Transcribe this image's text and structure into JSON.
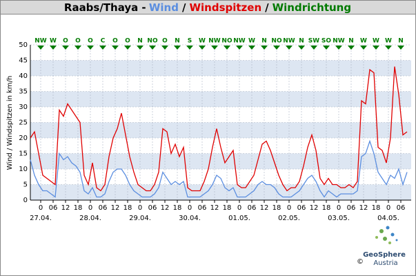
{
  "chart_data": {
    "type": "line",
    "location": "Raabs/Thaya",
    "title_separators": [
      "-",
      "/",
      "/"
    ],
    "direction_name": "Windrichtung",
    "direction_color": "#007a00",
    "y_label": "Wind / Windspitzen in km/h",
    "x": [
      -5,
      -3,
      -1,
      1,
      3,
      5,
      7,
      9,
      11,
      13,
      15,
      17,
      19,
      21,
      23,
      25,
      27,
      29,
      31,
      33,
      35,
      37,
      39,
      41,
      43,
      45,
      47,
      49,
      51,
      53,
      55,
      57,
      59,
      61,
      63,
      65,
      67,
      69,
      71,
      73,
      75,
      77,
      79,
      81,
      83,
      85,
      87,
      89,
      91,
      93,
      95,
      97,
      99,
      101,
      103,
      105,
      107,
      109,
      111,
      113,
      115,
      117,
      119,
      121,
      123,
      125,
      127,
      129,
      131,
      133,
      135,
      137,
      139,
      141,
      143,
      145,
      147,
      149,
      151,
      153,
      155,
      157,
      159,
      161,
      163,
      165,
      167,
      169,
      171,
      173,
      175,
      177
    ],
    "series": [
      {
        "name": "Wind",
        "color": "#5b8ee0",
        "values": [
          13,
          8,
          5,
          3,
          3,
          2,
          1,
          15,
          13,
          14,
          12,
          11,
          9,
          3,
          2,
          4,
          1,
          1,
          2,
          6,
          9,
          10,
          10,
          8,
          5,
          3,
          2,
          1,
          1,
          1,
          2,
          4,
          9,
          7,
          5,
          6,
          5,
          6,
          1,
          1,
          1,
          1,
          2,
          3,
          5,
          8,
          7,
          4,
          3,
          4,
          1,
          1,
          1,
          2,
          3,
          5,
          6,
          5,
          5,
          4,
          2,
          1,
          1,
          1,
          2,
          3,
          5,
          7,
          8,
          6,
          3,
          1,
          3,
          2,
          1,
          2,
          2,
          2,
          2,
          3,
          14,
          15,
          19,
          15,
          9,
          7,
          5,
          8,
          7,
          10,
          5,
          9
        ]
      },
      {
        "name": "Windspitzen",
        "color": "#e00000",
        "values": [
          20,
          22,
          15,
          8,
          7,
          6,
          5,
          29,
          27,
          31,
          29,
          27,
          25,
          8,
          5,
          12,
          4,
          3,
          5,
          14,
          20,
          23,
          28,
          21,
          14,
          9,
          5,
          4,
          3,
          3,
          5,
          9,
          23,
          22,
          15,
          18,
          14,
          17,
          4,
          3,
          3,
          3,
          6,
          10,
          17,
          23,
          17,
          12,
          14,
          16,
          5,
          4,
          4,
          6,
          8,
          13,
          18,
          19,
          16,
          12,
          8,
          5,
          3,
          4,
          4,
          6,
          11,
          17,
          21,
          16,
          7,
          5,
          7,
          5,
          5,
          4,
          4,
          5,
          4,
          6,
          32,
          31,
          42,
          41,
          17,
          16,
          12,
          20,
          43,
          34,
          21,
          22
        ]
      }
    ],
    "directions": [
      "NW",
      "W",
      "O",
      "O",
      "O",
      "C",
      "O",
      "O",
      "N",
      "NO",
      "O",
      "N",
      "S",
      "W",
      "NW",
      "NO",
      "NW",
      "W",
      "N",
      "NO",
      "NW",
      "N",
      "SW",
      "SO",
      "NW",
      "N",
      "W",
      "W",
      "W",
      "N"
    ],
    "xlim": [
      -5,
      179
    ],
    "xticks": [
      {
        "value": 0,
        "label": "0"
      },
      {
        "value": 6,
        "label": "06"
      },
      {
        "value": 12,
        "label": "12"
      },
      {
        "value": 18,
        "label": "18"
      },
      {
        "value": 24,
        "label": "0"
      },
      {
        "value": 30,
        "label": "06"
      },
      {
        "value": 36,
        "label": "12"
      },
      {
        "value": 42,
        "label": "18"
      },
      {
        "value": 48,
        "label": "0"
      },
      {
        "value": 54,
        "label": "06"
      },
      {
        "value": 60,
        "label": "12"
      },
      {
        "value": 66,
        "label": "18"
      },
      {
        "value": 72,
        "label": "0"
      },
      {
        "value": 78,
        "label": "06"
      },
      {
        "value": 84,
        "label": "12"
      },
      {
        "value": 90,
        "label": "18"
      },
      {
        "value": 96,
        "label": "0"
      },
      {
        "value": 102,
        "label": "06"
      },
      {
        "value": 108,
        "label": "12"
      },
      {
        "value": 114,
        "label": "18"
      },
      {
        "value": 120,
        "label": "0"
      },
      {
        "value": 126,
        "label": "06"
      },
      {
        "value": 132,
        "label": "12"
      },
      {
        "value": 138,
        "label": "18"
      },
      {
        "value": 144,
        "label": "0"
      },
      {
        "value": 150,
        "label": "06"
      },
      {
        "value": 156,
        "label": "12"
      },
      {
        "value": 162,
        "label": "18"
      },
      {
        "value": 168,
        "label": "0"
      },
      {
        "value": 174,
        "label": "06"
      }
    ],
    "date_labels": [
      "27.04.",
      "28.04.",
      "29.04.",
      "30.04.",
      "01.05.",
      "02.05.",
      "03.05.",
      "04.05."
    ],
    "ylim": [
      0,
      50
    ],
    "yticks": [
      0,
      5,
      10,
      15,
      20,
      25,
      30,
      35,
      40,
      45,
      50
    ],
    "grid": true,
    "band_color": "#dde6f2",
    "credits": {
      "logo_name": "GeoSphere",
      "logo_sub": "Austria",
      "copyright": "©"
    }
  }
}
